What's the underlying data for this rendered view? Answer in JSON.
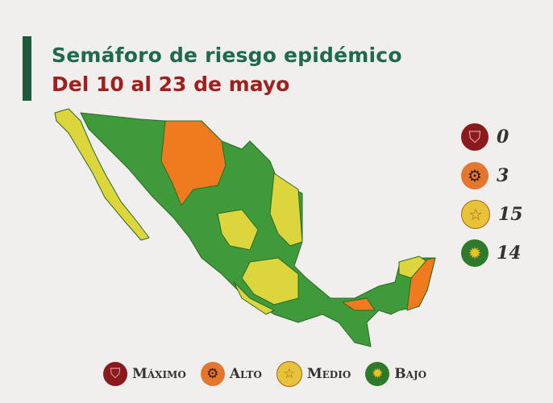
{
  "header": {
    "title": "Semáforo de riesgo epidémico",
    "subtitle": "Del 10 al 23 de mayo"
  },
  "colors": {
    "maximo": "#8a1a1e",
    "alto": "#f07a1e",
    "medio": "#dcd53c",
    "bajo": "#3f9a3a",
    "title": "#1f6a4a",
    "subtitle": "#a0201e"
  },
  "counts": [
    {
      "level": "Máximo",
      "icon": "shield-icon",
      "value": "0"
    },
    {
      "level": "Alto",
      "icon": "gear-icon",
      "value": "3"
    },
    {
      "level": "Medio",
      "icon": "star-icon",
      "value": "15"
    },
    {
      "level": "Bajo",
      "icon": "sun-icon",
      "value": "14"
    }
  ],
  "legend": [
    {
      "label": "Máximo",
      "icon": "shield-icon"
    },
    {
      "label": "Alto",
      "icon": "gear-icon"
    },
    {
      "label": "Medio",
      "icon": "star-icon"
    },
    {
      "label": "Bajo",
      "icon": "sun-icon"
    }
  ]
}
